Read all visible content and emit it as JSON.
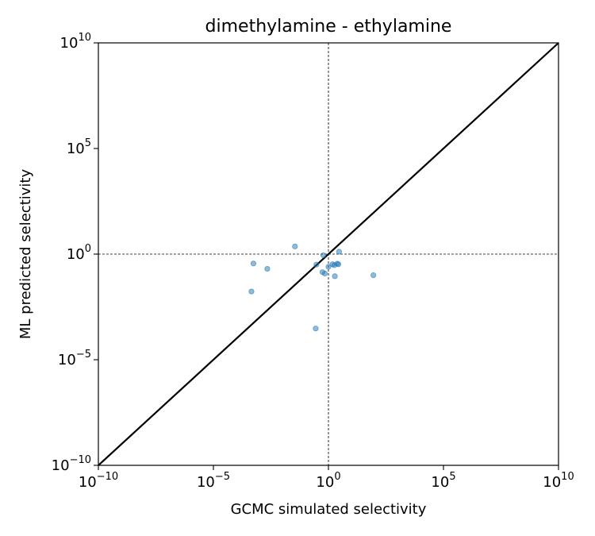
{
  "chart_data": {
    "type": "scatter",
    "title": "dimethylamine - ethylamine",
    "xlabel": "GCMC simulated selectivity",
    "ylabel": "ML predicted selectivity",
    "xscale": "log",
    "yscale": "log",
    "xlim": [
      1e-10,
      10000000000.0
    ],
    "ylim": [
      1e-10,
      10000000000.0
    ],
    "x_tick_labels": [
      {
        "value": 1e-10,
        "base": "10",
        "exp": "−10"
      },
      {
        "value": 1e-05,
        "base": "10",
        "exp": "−5"
      },
      {
        "value": 1,
        "base": "10",
        "exp": "0"
      },
      {
        "value": 100000.0,
        "base": "10",
        "exp": "5"
      },
      {
        "value": 10000000000.0,
        "base": "10",
        "exp": "10"
      }
    ],
    "y_tick_labels": [
      {
        "value": 1e-10,
        "base": "10",
        "exp": "−10"
      },
      {
        "value": 1e-05,
        "base": "10",
        "exp": "−5"
      },
      {
        "value": 1,
        "base": "10",
        "exp": "0"
      },
      {
        "value": 100000.0,
        "base": "10",
        "exp": "5"
      },
      {
        "value": 10000000000.0,
        "base": "10",
        "exp": "10"
      }
    ],
    "reference_lines": [
      {
        "orientation": "vertical",
        "value": 1,
        "style": "dashed"
      },
      {
        "orientation": "horizontal",
        "value": 1,
        "style": "dashed"
      },
      {
        "orientation": "diagonal",
        "style": "solid",
        "meaning": "y = x"
      }
    ],
    "points": [
      {
        "x": 0.035,
        "y": 2.3
      },
      {
        "x": 0.00055,
        "y": 0.36
      },
      {
        "x": 0.0022,
        "y": 0.2
      },
      {
        "x": 0.00045,
        "y": 0.017
      },
      {
        "x": 0.28,
        "y": 0.0003
      },
      {
        "x": 0.3,
        "y": 0.32
      },
      {
        "x": 0.55,
        "y": 0.14
      },
      {
        "x": 0.6,
        "y": 0.88
      },
      {
        "x": 0.7,
        "y": 0.12
      },
      {
        "x": 1.5,
        "y": 0.33
      },
      {
        "x": 1.8,
        "y": 0.3
      },
      {
        "x": 2.4,
        "y": 0.35
      },
      {
        "x": 2.7,
        "y": 0.33
      },
      {
        "x": 2.9,
        "y": 1.3
      },
      {
        "x": 1.9,
        "y": 0.09
      },
      {
        "x": 1.0,
        "y": 0.25
      },
      {
        "x": 90,
        "y": 0.1
      }
    ],
    "marker_color": "#1f77b4",
    "grid": false,
    "legend": "none"
  }
}
